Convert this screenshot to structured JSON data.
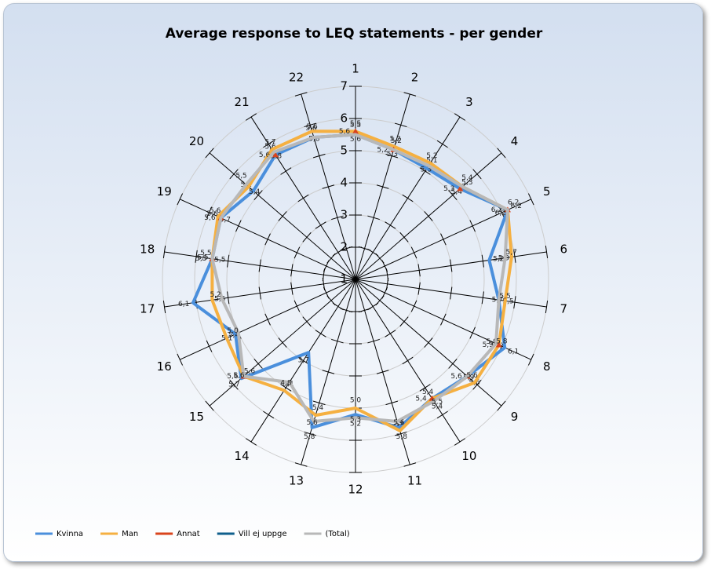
{
  "chart_data": {
    "type": "radar",
    "title": "Average response to LEQ statements - per gender",
    "categories": [
      "1",
      "2",
      "3",
      "4",
      "5",
      "6",
      "7",
      "8",
      "9",
      "10",
      "11",
      "12",
      "13",
      "14",
      "15",
      "16",
      "17",
      "18",
      "19",
      "20",
      "21",
      "22"
    ],
    "ylim": [
      1,
      7
    ],
    "yticks": [
      1,
      2,
      3,
      4,
      5,
      6,
      7
    ],
    "grid": true,
    "series": [
      {
        "name": "Kvinna",
        "color": "#4a8fdc",
        "values": [
          5.5,
          5.2,
          5.1,
          5.3,
          6.2,
          5.2,
          5.5,
          6.1,
          5.6,
          5.4,
          5.8,
          5.2,
          5.8,
          3.7,
          5.7,
          5.1,
          6.1,
          5.5,
          5.6,
          5.2,
          5.6,
          5.6
        ],
        "value_labels": [
          "5,5",
          "5,2",
          "5,1",
          "5,3",
          "6,2",
          "5,2",
          "5,5",
          "6,1",
          "5,6",
          "5,4",
          "5,8",
          "5,2",
          "5,8",
          "3,7",
          "5,7",
          "5,1",
          "6,1",
          "5,5",
          "5,6",
          "5,2",
          "5,6",
          "5,6"
        ]
      },
      {
        "name": "Man",
        "color": "#f5b041",
        "values": [
          5.6,
          5.3,
          5.3,
          5.4,
          6.2,
          5.9,
          5.7,
          5.9,
          5.9,
          5.4,
          5.9,
          5.0,
          5.4,
          5.1,
          5.6,
          5.4,
          5.5,
          5.5,
          5.7,
          5.4,
          5.8,
          5.8
        ],
        "value_labels": [
          "5,6",
          "5,3",
          "5,3",
          "5,4",
          "6,2",
          "5,9",
          "5,7",
          "5,9",
          "5,9",
          "5,4",
          "5,9",
          "5,0",
          "5,4",
          "5,1",
          "5,6",
          "5,4",
          "5,5",
          "5,5",
          "5,7",
          "5,4",
          "5,8",
          "5,8"
        ]
      },
      {
        "name": "Annat",
        "color": "#d9441c",
        "values": [
          5.6,
          5.2,
          null,
          5.3,
          6.2,
          null,
          null,
          5.9,
          5.6,
          5.4,
          null,
          null,
          null,
          null,
          5.6,
          null,
          null,
          5.5,
          5.6,
          null,
          5.6,
          null
        ],
        "value_labels": [
          "5,6",
          "5,2",
          null,
          "5,3",
          "6,2",
          null,
          null,
          "5,9",
          "5,6",
          "5,4",
          null,
          null,
          null,
          null,
          "5,6",
          null,
          null,
          "5,5",
          "5,6",
          null,
          "5,6",
          null
        ]
      },
      {
        "name": "Vill ej uppge",
        "color": "#0f5f8c",
        "values": [
          null,
          null,
          null,
          null,
          null,
          null,
          null,
          null,
          null,
          null,
          null,
          null,
          null,
          null,
          null,
          null,
          null,
          null,
          null,
          null,
          null,
          null
        ]
      },
      {
        "name": "(Total)",
        "color": "#b8b8b8",
        "values": [
          5.5,
          5.2,
          5.2,
          5.4,
          6.2,
          5.7,
          5.5,
          5.8,
          5.6,
          5.5,
          5.6,
          5.3,
          5.6,
          4.8,
          5.6,
          5.0,
          5.2,
          5.5,
          5.6,
          5.5,
          5.7,
          5.6
        ],
        "value_labels": [
          "5,5",
          "5,2",
          "5,2",
          "5,4",
          "6,2",
          "5,7",
          "5,5",
          "5,8",
          "5,6",
          "5,5",
          "5,6",
          "5,3",
          "5,6",
          "4,8",
          "5,6",
          "5,0",
          "5,2",
          "5,5",
          "5,6",
          "5,5",
          "5,7",
          "5,6"
        ]
      }
    ]
  }
}
